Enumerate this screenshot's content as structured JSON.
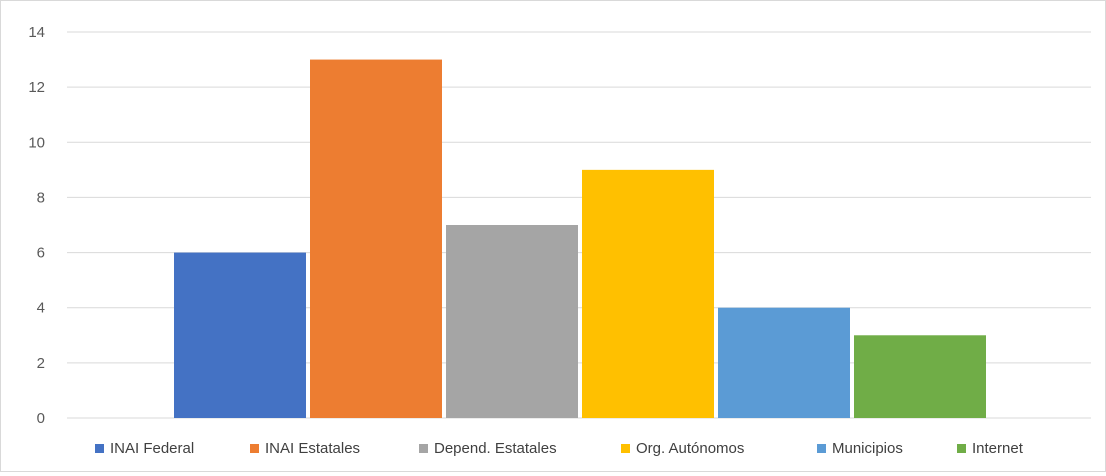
{
  "chart_data": {
    "type": "bar",
    "title": "",
    "xlabel": "",
    "ylabel": "",
    "ylim": [
      0,
      14
    ],
    "yticks": [
      0,
      2,
      4,
      6,
      8,
      10,
      12,
      14
    ],
    "grid": true,
    "legend_position": "bottom",
    "series": [
      {
        "name": "INAI Federal",
        "value": 6,
        "color": "#4472C4"
      },
      {
        "name": "INAI Estatales",
        "value": 13,
        "color": "#ED7D31"
      },
      {
        "name": "Depend. Estatales",
        "value": 7,
        "color": "#A5A5A5"
      },
      {
        "name": "Org. Autónomos",
        "value": 9,
        "color": "#FFC000"
      },
      {
        "name": "Municipios",
        "value": 4,
        "color": "#5B9BD5"
      },
      {
        "name": "Internet",
        "value": 3,
        "color": "#70AD47"
      }
    ]
  }
}
